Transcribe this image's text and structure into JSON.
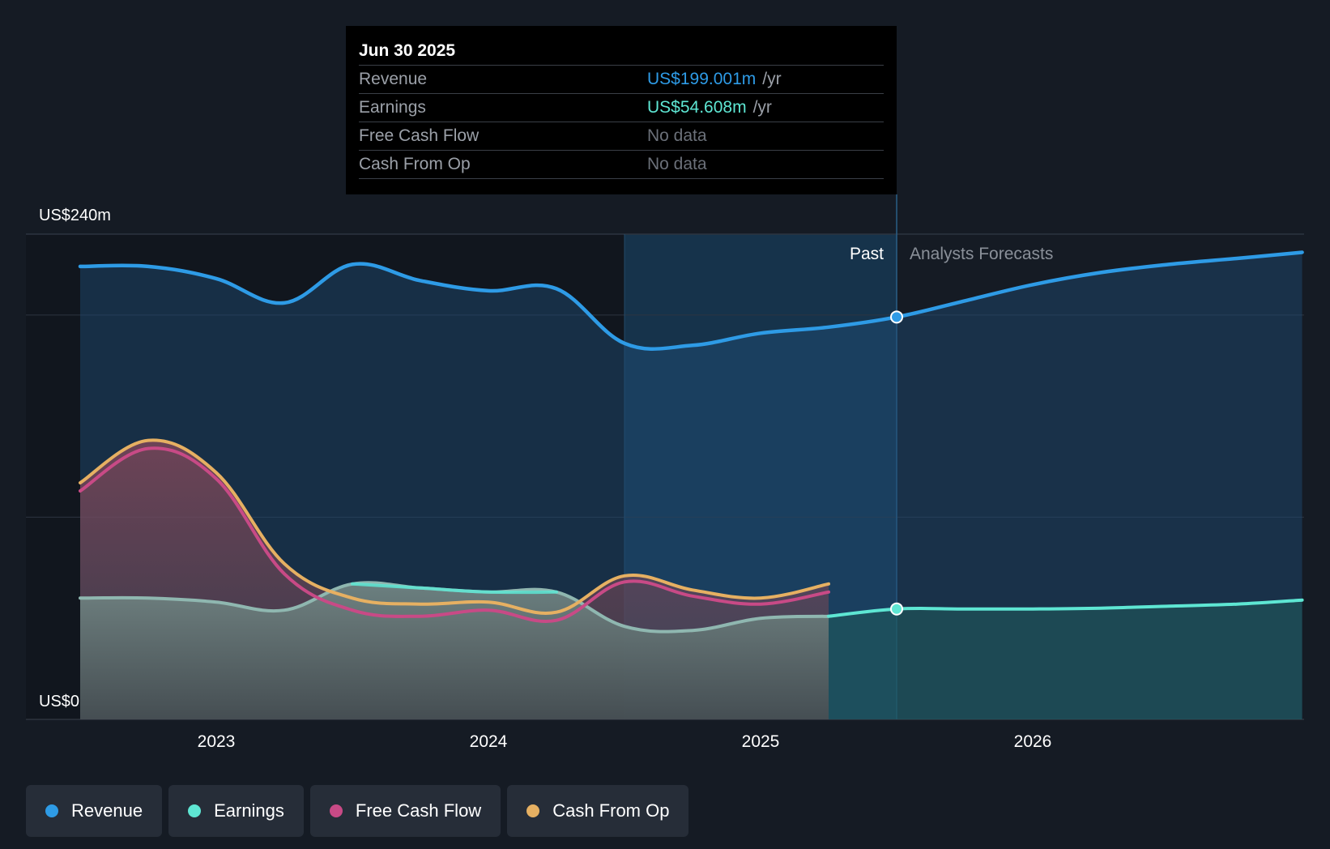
{
  "chart_data": {
    "type": "area",
    "y_axis": {
      "top_label": "US$240m",
      "bottom_label": "US$0",
      "ylim": [
        0,
        240
      ],
      "gridlines": [
        0,
        100,
        200,
        240
      ]
    },
    "x_axis": {
      "tick_labels": [
        "2023",
        "2024",
        "2025",
        "2026"
      ],
      "ticks": [
        2023,
        2024,
        2025,
        2026
      ],
      "xlim": [
        2022.3,
        2026.99
      ]
    },
    "regions": {
      "past_label": "Past",
      "forecast_label": "Analysts Forecasts",
      "highlight_start": 2024.5,
      "divider": 2025.5
    },
    "series": [
      {
        "name": "Revenue",
        "color": "#2e9be6",
        "x": [
          2022.5,
          2022.75,
          2023.0,
          2023.25,
          2023.5,
          2023.75,
          2024.0,
          2024.25,
          2024.5,
          2024.75,
          2025.0,
          2025.25,
          2025.5,
          2025.75,
          2026.0,
          2026.25,
          2026.5,
          2026.75,
          2026.99
        ],
        "values": [
          224,
          224,
          218,
          206,
          225,
          217,
          212,
          213,
          186,
          185,
          191,
          194,
          199,
          207,
          215,
          221,
          225,
          228,
          231
        ]
      },
      {
        "name": "Earnings",
        "color": "#5ee6d3",
        "x": [
          2022.5,
          2022.75,
          2023.0,
          2023.25,
          2023.5,
          2023.75,
          2024.0,
          2024.25,
          2024.5,
          2024.75,
          2025.0,
          2025.25,
          2025.5,
          2025.75,
          2026.0,
          2026.25,
          2026.5,
          2026.75,
          2026.99
        ],
        "values": [
          60,
          60,
          58,
          54,
          67,
          65,
          63,
          63,
          46,
          44,
          50,
          51,
          54.608,
          54.608,
          54.608,
          55,
          56,
          57,
          59
        ]
      },
      {
        "name": "Free Cash Flow",
        "color": "#c84a86",
        "x": [
          2022.5,
          2022.75,
          2023.0,
          2023.25,
          2023.5,
          2023.75,
          2024.0,
          2024.25,
          2024.5,
          2024.75,
          2025.0,
          2025.25
        ],
        "values": [
          113,
          134,
          119,
          72,
          54,
          51,
          54,
          49,
          68,
          61,
          57,
          63
        ]
      },
      {
        "name": "Cash From Op",
        "color": "#e6b062",
        "x": [
          2022.5,
          2022.75,
          2023.0,
          2023.25,
          2023.5,
          2023.75,
          2024.0,
          2024.25,
          2024.5,
          2024.75,
          2025.0,
          2025.25
        ],
        "values": [
          117,
          138,
          122,
          77,
          60,
          57,
          58,
          53,
          71,
          64,
          60,
          67
        ]
      }
    ]
  },
  "tooltip": {
    "date": "Jun 30 2025",
    "rows": [
      {
        "label": "Revenue",
        "value": "US$199.001m",
        "unit": "/yr"
      },
      {
        "label": "Earnings",
        "value": "US$54.608m",
        "unit": "/yr"
      },
      {
        "label": "Free Cash Flow",
        "value": "No data"
      },
      {
        "label": "Cash From Op",
        "value": "No data"
      }
    ]
  },
  "legend": [
    {
      "label": "Revenue",
      "color": "#2e9be6"
    },
    {
      "label": "Earnings",
      "color": "#5ee6d3"
    },
    {
      "label": "Free Cash Flow",
      "color": "#c84a86"
    },
    {
      "label": "Cash From Op",
      "color": "#e6b062"
    }
  ]
}
